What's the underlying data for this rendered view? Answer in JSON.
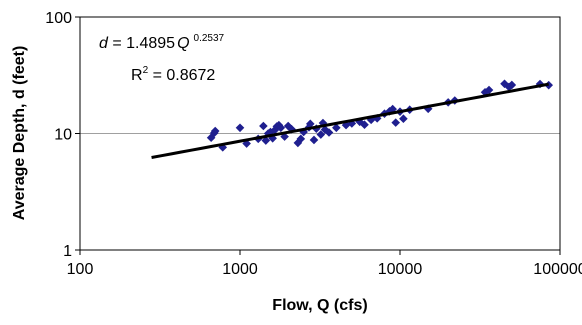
{
  "chart_data": {
    "type": "scatter",
    "title": "",
    "xlabel": "Flow, Q (cfs)",
    "ylabel": "Average Depth, d (feet)",
    "xscale": "log",
    "yscale": "log",
    "xlim": [
      100,
      100000
    ],
    "ylim": [
      1,
      100
    ],
    "x_ticks": [
      "100",
      "1000",
      "10000",
      "100000"
    ],
    "y_ticks": [
      "1",
      "10",
      "100"
    ],
    "grid": "horizontal major gridlines",
    "colors": {
      "points": "#1F1F8F",
      "trendline": "#000000",
      "grid": "#A0A0A0"
    },
    "equation": {
      "d": "d",
      "equals": " = 1.4895",
      "Q": "Q",
      "exponent": "0.2537",
      "r2_prefix": "R",
      "r2_sup": "2",
      "r2_value": " = 0.8672"
    },
    "trendline": {
      "coefficient": 1.4895,
      "exponent": 0.2537,
      "x_range": [
        280,
        85000
      ]
    },
    "points": [
      [
        660,
        9.2
      ],
      [
        690,
        10.1
      ],
      [
        700,
        10.5
      ],
      [
        780,
        7.6
      ],
      [
        1000,
        11.2
      ],
      [
        1100,
        8.2
      ],
      [
        1300,
        9.0
      ],
      [
        1400,
        11.6
      ],
      [
        1450,
        8.7
      ],
      [
        1500,
        10.0
      ],
      [
        1550,
        10.3
      ],
      [
        1600,
        9.1
      ],
      [
        1650,
        10.7
      ],
      [
        1700,
        11.5
      ],
      [
        1750,
        11.8
      ],
      [
        1800,
        11.2
      ],
      [
        1900,
        9.4
      ],
      [
        2000,
        11.6
      ],
      [
        2100,
        10.9
      ],
      [
        2300,
        8.3
      ],
      [
        2400,
        9.0
      ],
      [
        2500,
        10.3
      ],
      [
        2700,
        11.3
      ],
      [
        2750,
        12.1
      ],
      [
        2900,
        8.8
      ],
      [
        3000,
        11.0
      ],
      [
        3200,
        9.8
      ],
      [
        3300,
        12.3
      ],
      [
        3400,
        10.8
      ],
      [
        3600,
        10.2
      ],
      [
        4000,
        11.2
      ],
      [
        4600,
        11.8
      ],
      [
        5000,
        12.2
      ],
      [
        5600,
        12.6
      ],
      [
        6000,
        11.9
      ],
      [
        6600,
        13.1
      ],
      [
        7200,
        13.5
      ],
      [
        8000,
        14.8
      ],
      [
        8600,
        15.5
      ],
      [
        9000,
        16.2
      ],
      [
        9400,
        12.4
      ],
      [
        10000,
        15.4
      ],
      [
        10500,
        13.4
      ],
      [
        11500,
        16.0
      ],
      [
        15000,
        16.3
      ],
      [
        20000,
        18.5
      ],
      [
        22000,
        19.2
      ],
      [
        34000,
        22.6
      ],
      [
        36000,
        23.6
      ],
      [
        45000,
        26.7
      ],
      [
        48000,
        25.1
      ],
      [
        50000,
        26.1
      ],
      [
        75000,
        26.6
      ],
      [
        85000,
        26.0
      ]
    ]
  }
}
